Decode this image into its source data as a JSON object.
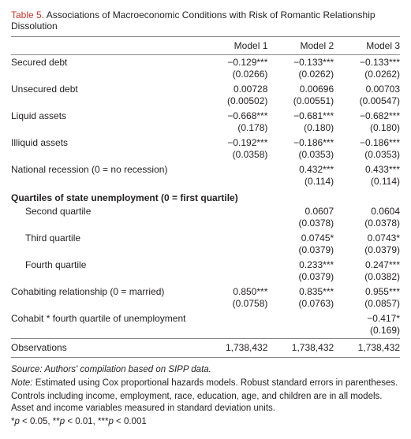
{
  "title_prefix": "Table 5.",
  "title_rest": " Associations of Macroeconomic Conditions with Risk of Romantic Relationship Dissolution",
  "columns": [
    "Model 1",
    "Model 2",
    "Model 3"
  ],
  "rows": [
    {
      "label": "Secured debt",
      "coef": [
        "−0.129***",
        "−0.133***",
        "−0.133***"
      ],
      "se": [
        "(0.0266)",
        "(0.0262)",
        "(0.0262)"
      ]
    },
    {
      "label": "Unsecured debt",
      "coef": [
        "0.00728",
        "0.00696",
        "0.00703"
      ],
      "se": [
        "(0.00502)",
        "(0.00551)",
        "(0.00547)"
      ]
    },
    {
      "label": "Liquid assets",
      "coef": [
        "−0.668***",
        "−0.681***",
        "−0.682***"
      ],
      "se": [
        "(0.178)",
        "(0.180)",
        "(0.180)"
      ]
    },
    {
      "label": "Illiquid assets",
      "coef": [
        "−0.192***",
        "−0.186***",
        "−0.186***"
      ],
      "se": [
        "(0.0358)",
        "(0.0353)",
        "(0.0353)"
      ]
    },
    {
      "label": "National recession (0 = no recession)",
      "coef": [
        "",
        "0.432***",
        "0.433***"
      ],
      "se": [
        "",
        "(0.114)",
        "(0.114)"
      ]
    }
  ],
  "section_label": "Quartiles of state unemployment (0 = first quartile)",
  "sub_rows": [
    {
      "label": "Second quartile",
      "coef": [
        "",
        "0.0607",
        "0.0604"
      ],
      "se": [
        "",
        "(0.0378)",
        "(0.0378)"
      ]
    },
    {
      "label": "Third quartile",
      "coef": [
        "",
        "0.0745*",
        "0.0743*"
      ],
      "se": [
        "",
        "(0.0379)",
        "(0.0379)"
      ]
    },
    {
      "label": "Fourth quartile",
      "coef": [
        "",
        "0.233***",
        "0.247***"
      ],
      "se": [
        "",
        "(0.0379)",
        "(0.0382)"
      ]
    }
  ],
  "rows2": [
    {
      "label": "Cohabiting relationship (0 = married)",
      "coef": [
        "0.850***",
        "0.835***",
        "0.955***"
      ],
      "se": [
        "(0.0758)",
        "(0.0763)",
        "(0.0857)"
      ]
    },
    {
      "label": "Cohabit * fourth quartile of unemployment",
      "coef": [
        "",
        "",
        "−0.417*"
      ],
      "se": [
        "",
        "",
        "(0.169)"
      ]
    }
  ],
  "obs": {
    "label": "Observations",
    "vals": [
      "1,738,432",
      "1,738,432",
      "1,738,432"
    ]
  },
  "notes": {
    "source": "Source: Authors' compilation based on SIPP data.",
    "note1": "Note: Estimated using Cox proportional hazards models. Robust standard errors in parentheses.",
    "note2": "Controls including income, employment, race, education, age, and children are in all models. Asset and income variables measured in standard deviation units.",
    "sig": "*p < 0.05, **p < 0.01, ***p < 0.001"
  }
}
